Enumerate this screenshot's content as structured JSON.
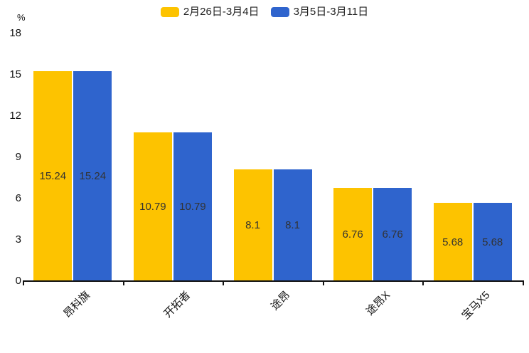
{
  "chart_data": {
    "type": "bar",
    "title": "",
    "unit": "%",
    "categories": [
      "昂科旗",
      "开拓者",
      "途昂",
      "途昂X",
      "宝马X5"
    ],
    "series": [
      {
        "name": "2月26日-3月4日",
        "color": "#FDC300",
        "values": [
          15.24,
          10.79,
          8.1,
          6.76,
          5.68
        ]
      },
      {
        "name": "3月5日-3月11日",
        "color": "#2F64CD",
        "values": [
          15.24,
          10.79,
          8.1,
          6.76,
          5.68
        ]
      }
    ],
    "value_labels": [
      [
        "15.24",
        "10.79",
        "8.1",
        "6.76",
        "5.68"
      ],
      [
        "15.24",
        "10.79",
        "8.1",
        "6.76",
        "5.68"
      ]
    ],
    "ylim": [
      0,
      18
    ],
    "yticks": [
      "0",
      "3",
      "6",
      "9",
      "12",
      "15",
      "18"
    ],
    "legend_position": "top",
    "grid": false,
    "axis_color": "#111111",
    "value_label_color": "#333333"
  }
}
